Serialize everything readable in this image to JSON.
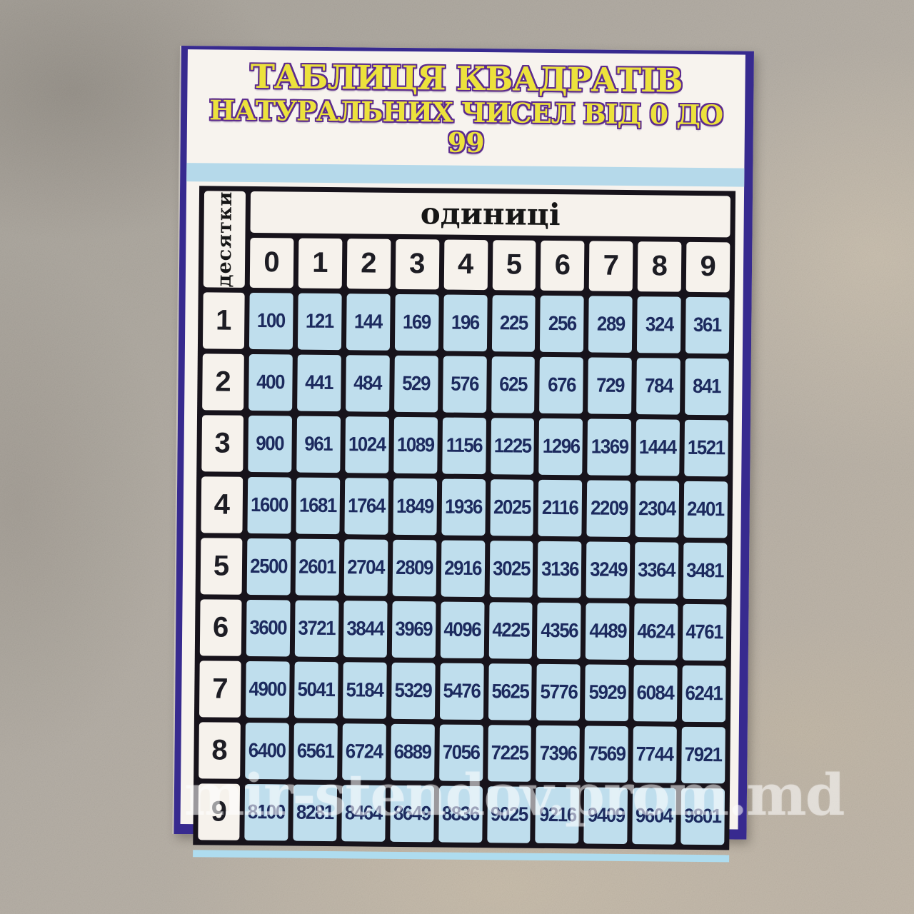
{
  "poster": {
    "title_line1": "ТАБЛИЦЯ КВАДРАТІВ",
    "title_line2": "НАТУРАЛЬНИХ ЧИСЕЛ ВІД 0 ДО 99",
    "table": {
      "corner_label": "десятки",
      "units_label": "одиниці",
      "unit_headers": [
        "0",
        "1",
        "2",
        "3",
        "4",
        "5",
        "6",
        "7",
        "8",
        "9"
      ],
      "rows": [
        {
          "tens": "1",
          "values": [
            "100",
            "121",
            "144",
            "169",
            "196",
            "225",
            "256",
            "289",
            "324",
            "361"
          ]
        },
        {
          "tens": "2",
          "values": [
            "400",
            "441",
            "484",
            "529",
            "576",
            "625",
            "676",
            "729",
            "784",
            "841"
          ]
        },
        {
          "tens": "3",
          "values": [
            "900",
            "961",
            "1024",
            "1089",
            "1156",
            "1225",
            "1296",
            "1369",
            "1444",
            "1521"
          ]
        },
        {
          "tens": "4",
          "values": [
            "1600",
            "1681",
            "1764",
            "1849",
            "1936",
            "2025",
            "2116",
            "2209",
            "2304",
            "2401"
          ]
        },
        {
          "tens": "5",
          "values": [
            "2500",
            "2601",
            "2704",
            "2809",
            "2916",
            "3025",
            "3136",
            "3249",
            "3364",
            "3481"
          ]
        },
        {
          "tens": "6",
          "values": [
            "3600",
            "3721",
            "3844",
            "3969",
            "4096",
            "4225",
            "4356",
            "4489",
            "4624",
            "4761"
          ]
        },
        {
          "tens": "7",
          "values": [
            "4900",
            "5041",
            "5184",
            "5329",
            "5476",
            "5625",
            "5776",
            "5929",
            "6084",
            "6241"
          ]
        },
        {
          "tens": "8",
          "values": [
            "6400",
            "6561",
            "6724",
            "6889",
            "7056",
            "7225",
            "7396",
            "7569",
            "7744",
            "7921"
          ]
        },
        {
          "tens": "9",
          "values": [
            "8100",
            "8281",
            "8464",
            "8649",
            "8836",
            "9025",
            "9216",
            "9409",
            "9604",
            "9801"
          ]
        }
      ]
    },
    "colors": {
      "cell_blue": "#bfdeed",
      "grid_black": "#17131b",
      "title_yellow": "#ece23c",
      "title_outline": "#5c2b8e",
      "border_purple": "#372a8f",
      "band_blue": "#b5d9ea",
      "number_navy": "#1c2a5e"
    }
  },
  "watermark": {
    "text": "mir-stendov.prom.md"
  }
}
